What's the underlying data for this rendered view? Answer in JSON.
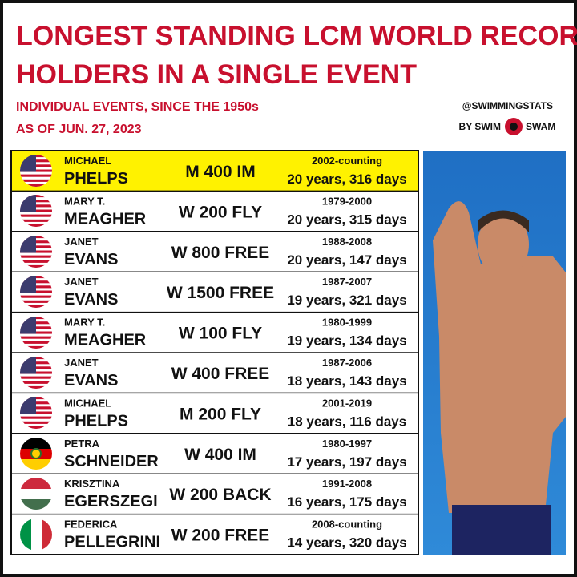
{
  "header": {
    "title_lines": [
      "LONGEST STANDING LCM WORLD RECORD",
      "HOLDERS IN A SINGLE EVENT"
    ],
    "subtitle_lines": [
      "INDIVIDUAL EVENTS, SINCE THE 1950s",
      "AS OF JUN. 27, 2023"
    ],
    "credit_lines": [
      "@SWIMMINGSTATS",
      "BY SWIM",
      "SWAM"
    ]
  },
  "table": {
    "rows": [
      {
        "first": "MICHAEL",
        "last": "PHELPS",
        "event": "M 400 IM",
        "years": "2002-counting",
        "duration": "20 years, 316 days"
      },
      {
        "first": "MARY T.",
        "last": "MEAGHER",
        "event": "W 200 FLY",
        "years": "1979-2000",
        "duration": "20 years, 315 days"
      },
      {
        "first": "JANET",
        "last": "EVANS",
        "event": "W 800 FREE",
        "years": "1988-2008",
        "duration": "20 years, 147 days"
      },
      {
        "first": "JANET",
        "last": "EVANS",
        "event": "W 1500 FREE",
        "years": "1987-2007",
        "duration": "19 years, 321 days"
      },
      {
        "first": "MARY T.",
        "last": "MEAGHER",
        "event": "W 100 FLY",
        "years": "1980-1999",
        "duration": "19 years, 134 days"
      },
      {
        "first": "JANET",
        "last": "EVANS",
        "event": "W 400 FREE",
        "years": "1987-2006",
        "duration": "18 years, 143 days"
      },
      {
        "first": "MICHAEL",
        "last": "PHELPS",
        "event": "M 200 FLY",
        "years": "2001-2019",
        "duration": "18 years, 116 days"
      },
      {
        "first": "PETRA",
        "last": "SCHNEIDER",
        "event": "W 400 IM",
        "years": "1980-1997",
        "duration": "17 years, 197 days"
      },
      {
        "first": "KRISZTINA",
        "last": "EGERSZEGI",
        "event": "W 200 BACK",
        "years": "1991-2008",
        "duration": "16 years, 175 days"
      },
      {
        "first": "FEDERICA",
        "last": "PELLEGRINI",
        "event": "W 200 FREE",
        "years": "2008-counting",
        "duration": "14 years, 320 days"
      }
    ]
  }
}
